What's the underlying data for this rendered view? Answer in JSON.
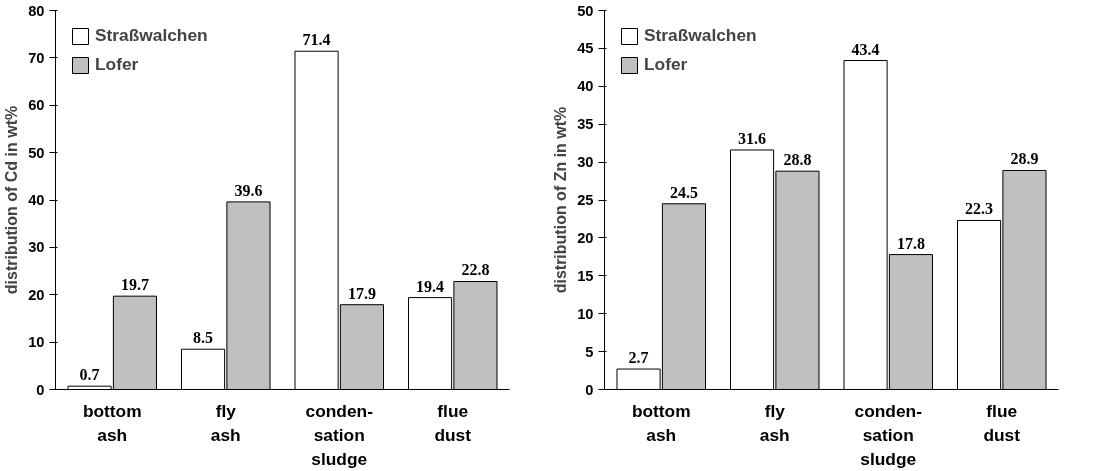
{
  "chart_data": [
    {
      "type": "bar",
      "ylabel": "distribution of Cd in wt%",
      "categories": [
        "bottom\nash",
        "fly\nash",
        "conden-\nsation\nsludge",
        "flue\ndust"
      ],
      "series": [
        {
          "name": "Straßwalchen",
          "color": "#ffffff",
          "values": [
            0.7,
            8.5,
            71.4,
            19.4
          ]
        },
        {
          "name": "Lofer",
          "color": "#c0c0c0",
          "values": [
            19.7,
            39.6,
            17.9,
            22.8
          ]
        }
      ],
      "ylim": [
        0,
        80
      ],
      "yticks": [
        0,
        10,
        20,
        30,
        40,
        50,
        60,
        70,
        80
      ],
      "grid": false,
      "legend": "top left",
      "data_labels": true
    },
    {
      "type": "bar",
      "ylabel": "distribution of Zn in wt%",
      "categories": [
        "bottom\nash",
        "fly\nash",
        "conden-\nsation\nsludge",
        "flue\ndust"
      ],
      "series": [
        {
          "name": "Straßwalchen",
          "color": "#ffffff",
          "values": [
            2.7,
            31.6,
            43.4,
            22.3
          ]
        },
        {
          "name": "Lofer",
          "color": "#c0c0c0",
          "values": [
            24.5,
            28.8,
            17.8,
            28.9
          ]
        }
      ],
      "ylim": [
        0,
        50
      ],
      "yticks": [
        0,
        5,
        10,
        15,
        20,
        25,
        30,
        35,
        40,
        45,
        50
      ],
      "grid": false,
      "legend": "top left",
      "data_labels": true
    }
  ]
}
